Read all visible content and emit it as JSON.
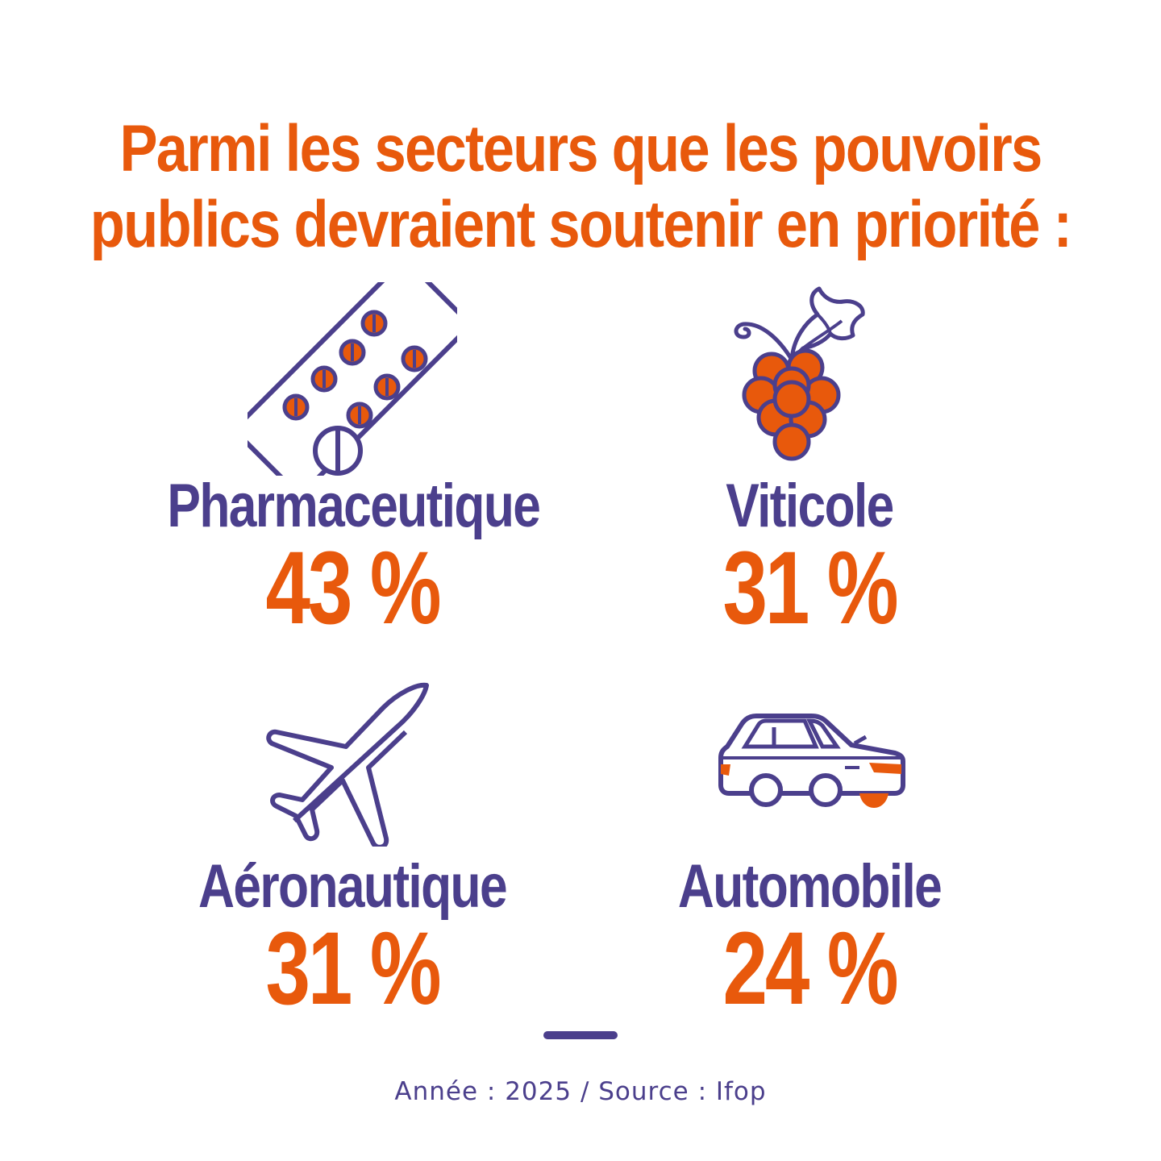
{
  "colors": {
    "orange": "#e8590c",
    "purple": "#4b3f8c",
    "background": "#ffffff"
  },
  "title": {
    "line1": "Parmi les secteurs que les pouvoirs",
    "line2": "publics devraient soutenir en priorité :"
  },
  "sectors": [
    {
      "label": "Pharmaceutique",
      "value": "43 %",
      "icon": "pill-blister-icon"
    },
    {
      "label": "Viticole",
      "value": "31 %",
      "icon": "grapes-icon"
    },
    {
      "label": "Aéronautique",
      "value": "31 %",
      "icon": "airplane-icon"
    },
    {
      "label": "Automobile",
      "value": "24 %",
      "icon": "car-icon"
    }
  ],
  "footer": {
    "text": "Année : 2025 / Source : Ifop"
  }
}
